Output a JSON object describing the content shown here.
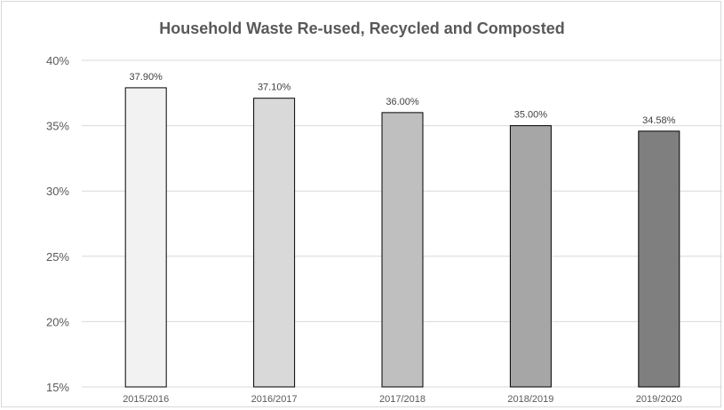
{
  "chart_data": {
    "type": "bar",
    "title": "Household Waste Re-used, Recycled and Composted",
    "xlabel": "",
    "ylabel": "",
    "categories": [
      "2015/2016",
      "2016/2017",
      "2017/2018",
      "2018/2019",
      "2019/2020"
    ],
    "values": [
      37.9,
      37.1,
      36.0,
      35.0,
      34.58
    ],
    "data_labels": [
      "37.90%",
      "37.10%",
      "36.00%",
      "35.00%",
      "34.58%"
    ],
    "ylim": [
      15,
      40
    ],
    "yticks": [
      15,
      20,
      25,
      30,
      35,
      40
    ],
    "ytick_labels": [
      "15%",
      "20%",
      "25%",
      "30%",
      "35%",
      "40%"
    ],
    "grid": true,
    "legend": "none",
    "bar_colors": [
      "#f2f2f2",
      "#d9d9d9",
      "#bfbfbf",
      "#a6a6a6",
      "#7f7f7f"
    ],
    "bar_edge_color": "#000000",
    "grid_color": "#d9d9d9"
  }
}
